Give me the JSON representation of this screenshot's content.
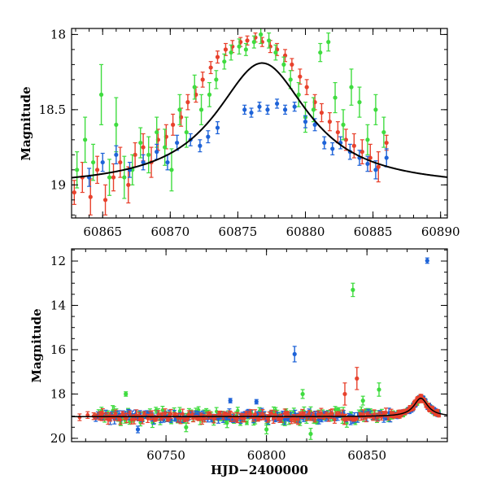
{
  "chart_data": [
    {
      "type": "scatter",
      "title": "",
      "xlabel": "",
      "ylabel": "Magnitude",
      "xlim": [
        60862.7,
        60890.5
      ],
      "ylim": [
        19.22,
        17.96
      ],
      "y_inverted": true,
      "grid": false,
      "xticks_major": [
        60865,
        60870,
        60875,
        60880,
        60885,
        60890
      ],
      "xticks_minor_step": 1,
      "yticks_major": [
        18,
        18.5,
        19
      ],
      "yticks_minor_step": 0.1,
      "colors": {
        "red": "#e8412c",
        "green": "#3fdc3f",
        "blue": "#1e63d8",
        "model": "#000000"
      },
      "model_curve": {
        "peak_x": 60876.8,
        "peak_mag": 18.19,
        "base_mag": 19.02,
        "width": 4.2
      },
      "series": [
        {
          "color": "red",
          "points": [
            [
              60862.9,
              19.05,
              0.08
            ],
            [
              60863.5,
              18.95,
              0.1
            ],
            [
              60864.1,
              19.08,
              0.12
            ],
            [
              60864.6,
              18.9,
              0.09
            ],
            [
              60865.2,
              19.1,
              0.1
            ],
            [
              60865.8,
              18.95,
              0.09
            ],
            [
              60866.3,
              18.85,
              0.1
            ],
            [
              60866.9,
              19.0,
              0.12
            ],
            [
              60867.4,
              18.8,
              0.08
            ],
            [
              60868.0,
              18.75,
              0.09
            ],
            [
              60868.6,
              18.85,
              0.1
            ],
            [
              60869.1,
              18.7,
              0.07
            ],
            [
              60869.7,
              18.68,
              0.08
            ],
            [
              60870.2,
              18.6,
              0.07
            ],
            [
              60870.8,
              18.55,
              0.06
            ],
            [
              60871.3,
              18.45,
              0.05
            ],
            [
              60871.9,
              18.4,
              0.05
            ],
            [
              60872.4,
              18.3,
              0.05
            ],
            [
              60873.0,
              18.22,
              0.04
            ],
            [
              60873.5,
              18.15,
              0.04
            ],
            [
              60874.1,
              18.1,
              0.04
            ],
            [
              60874.6,
              18.08,
              0.04
            ],
            [
              60875.2,
              18.05,
              0.03
            ],
            [
              60875.7,
              18.04,
              0.03
            ],
            [
              60876.3,
              18.02,
              0.03
            ],
            [
              60876.8,
              18.05,
              0.03
            ],
            [
              60877.4,
              18.08,
              0.04
            ],
            [
              60877.9,
              18.1,
              0.04
            ],
            [
              60878.5,
              18.14,
              0.04
            ],
            [
              60879.0,
              18.2,
              0.04
            ],
            [
              60879.6,
              18.28,
              0.05
            ],
            [
              60880.1,
              18.35,
              0.05
            ],
            [
              60880.7,
              18.45,
              0.05
            ],
            [
              60881.2,
              18.52,
              0.06
            ],
            [
              60881.8,
              18.58,
              0.06
            ],
            [
              60882.4,
              18.65,
              0.07
            ],
            [
              60883.0,
              18.7,
              0.07
            ],
            [
              60883.6,
              18.74,
              0.08
            ],
            [
              60884.2,
              18.78,
              0.08
            ],
            [
              60884.8,
              18.82,
              0.09
            ],
            [
              60885.4,
              18.88,
              0.1
            ],
            [
              60886.0,
              18.72,
              0.05
            ]
          ]
        },
        {
          "color": "green",
          "points": [
            [
              60863.1,
              18.9,
              0.12
            ],
            [
              60863.7,
              18.7,
              0.15
            ],
            [
              60864.3,
              18.85,
              0.12
            ],
            [
              60864.9,
              18.4,
              0.2
            ],
            [
              60865.5,
              18.95,
              0.12
            ],
            [
              60866.0,
              18.6,
              0.18
            ],
            [
              60866.6,
              18.95,
              0.14
            ],
            [
              60867.2,
              18.9,
              0.1
            ],
            [
              60867.8,
              18.72,
              0.1
            ],
            [
              60868.4,
              18.8,
              0.12
            ],
            [
              60869.0,
              18.65,
              0.1
            ],
            [
              60869.6,
              18.75,
              0.12
            ],
            [
              60870.1,
              18.9,
              0.14
            ],
            [
              60870.7,
              18.5,
              0.1
            ],
            [
              60871.2,
              18.65,
              0.1
            ],
            [
              60871.8,
              18.35,
              0.08
            ],
            [
              60872.3,
              18.5,
              0.1
            ],
            [
              60872.9,
              18.4,
              0.08
            ],
            [
              60873.4,
              18.3,
              0.06
            ],
            [
              60874.0,
              18.18,
              0.05
            ],
            [
              60874.5,
              18.12,
              0.05
            ],
            [
              60875.1,
              18.08,
              0.05
            ],
            [
              60875.6,
              18.1,
              0.04
            ],
            [
              60876.2,
              18.05,
              0.04
            ],
            [
              60876.7,
              18.0,
              0.06
            ],
            [
              60877.3,
              18.04,
              0.05
            ],
            [
              60877.8,
              18.12,
              0.05
            ],
            [
              60878.4,
              18.2,
              0.05
            ],
            [
              60878.9,
              18.3,
              0.06
            ],
            [
              60879.5,
              18.4,
              0.08
            ],
            [
              60880.0,
              18.55,
              0.1
            ],
            [
              60880.6,
              18.5,
              0.08
            ],
            [
              60881.1,
              18.12,
              0.06
            ],
            [
              60881.7,
              18.05,
              0.06
            ],
            [
              60882.2,
              18.42,
              0.1
            ],
            [
              60882.8,
              18.6,
              0.1
            ],
            [
              60883.4,
              18.35,
              0.12
            ],
            [
              60884.0,
              18.45,
              0.1
            ],
            [
              60884.6,
              18.7,
              0.1
            ],
            [
              60885.2,
              18.5,
              0.1
            ],
            [
              60885.8,
              18.65,
              0.1
            ]
          ]
        },
        {
          "color": "blue",
          "points": [
            [
              60864.0,
              18.95,
              0.06
            ],
            [
              60865.0,
              18.85,
              0.06
            ],
            [
              60866.0,
              18.8,
              0.06
            ],
            [
              60867.0,
              18.9,
              0.05
            ],
            [
              60868.0,
              18.85,
              0.05
            ],
            [
              60869.0,
              18.78,
              0.05
            ],
            [
              60869.8,
              18.85,
              0.05
            ],
            [
              60870.5,
              18.72,
              0.05
            ],
            [
              60871.5,
              18.7,
              0.04
            ],
            [
              60872.2,
              18.74,
              0.04
            ],
            [
              60872.8,
              18.68,
              0.04
            ],
            [
              60873.5,
              18.62,
              0.04
            ],
            [
              60875.5,
              18.5,
              0.03
            ],
            [
              60876.0,
              18.52,
              0.03
            ],
            [
              60876.6,
              18.48,
              0.03
            ],
            [
              60877.2,
              18.5,
              0.03
            ],
            [
              60877.9,
              18.46,
              0.03
            ],
            [
              60878.5,
              18.5,
              0.03
            ],
            [
              60879.2,
              18.48,
              0.03
            ],
            [
              60880.0,
              18.58,
              0.04
            ],
            [
              60880.7,
              18.6,
              0.04
            ],
            [
              60881.4,
              18.72,
              0.04
            ],
            [
              60882.0,
              18.76,
              0.04
            ],
            [
              60882.6,
              18.72,
              0.04
            ],
            [
              60883.3,
              18.78,
              0.05
            ],
            [
              60884.0,
              18.82,
              0.05
            ],
            [
              60884.6,
              18.86,
              0.05
            ],
            [
              60885.2,
              18.9,
              0.06
            ],
            [
              60886.0,
              18.82,
              0.06
            ]
          ]
        }
      ]
    },
    {
      "type": "scatter",
      "title": "",
      "xlabel": "HJD−2400000",
      "ylabel": "Magnitude",
      "xlim": [
        60703,
        60890
      ],
      "ylim": [
        20.15,
        11.45
      ],
      "y_inverted": true,
      "grid": false,
      "xticks_major": [
        60750,
        60800,
        60850
      ],
      "xticks_minor_step": 10,
      "yticks_major": [
        12,
        14,
        16,
        18,
        20
      ],
      "yticks_minor_step": 0.5,
      "colors": {
        "red": "#e8412c",
        "green": "#3fdc3f",
        "blue": "#1e63d8",
        "model": "#000000"
      },
      "model_curve": {
        "peak_x": 60876.8,
        "peak_mag": 18.19,
        "base_mag": 19.02,
        "width": 4.2
      },
      "outliers": [
        {
          "color": "blue",
          "x": 60880,
          "y": 11.98,
          "err": 0.12
        },
        {
          "color": "green",
          "x": 60843,
          "y": 13.3,
          "err": 0.3
        },
        {
          "color": "blue",
          "x": 60814,
          "y": 16.2,
          "err": 0.35
        },
        {
          "color": "red",
          "x": 60845,
          "y": 17.3,
          "err": 0.5
        },
        {
          "color": "green",
          "x": 60730,
          "y": 18.0,
          "err": 0.1
        },
        {
          "color": "green",
          "x": 60818,
          "y": 18.0,
          "err": 0.2
        },
        {
          "color": "red",
          "x": 60839,
          "y": 18.0,
          "err": 0.5
        },
        {
          "color": "green",
          "x": 60856,
          "y": 17.8,
          "err": 0.3
        },
        {
          "color": "blue",
          "x": 60782,
          "y": 18.3,
          "err": 0.1
        },
        {
          "color": "blue",
          "x": 60795,
          "y": 18.35,
          "err": 0.1
        },
        {
          "color": "green",
          "x": 60848,
          "y": 18.3,
          "err": 0.2
        },
        {
          "color": "blue",
          "x": 60736,
          "y": 19.6,
          "err": 0.15
        },
        {
          "color": "green",
          "x": 60760,
          "y": 19.5,
          "err": 0.2
        },
        {
          "color": "green",
          "x": 60800,
          "y": 19.6,
          "err": 0.2
        },
        {
          "color": "green",
          "x": 60822,
          "y": 19.8,
          "err": 0.25
        }
      ],
      "baseline_range": [
        60715,
        60862
      ]
    }
  ]
}
